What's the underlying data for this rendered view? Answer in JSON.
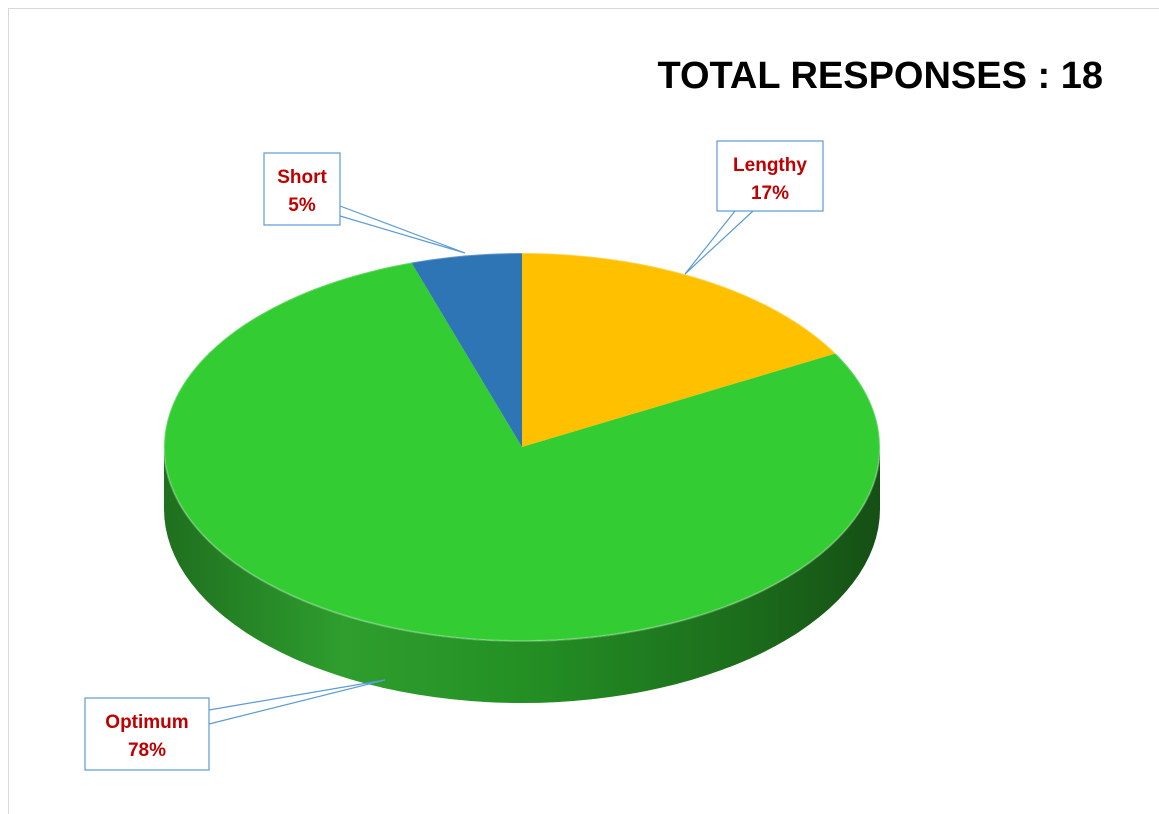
{
  "chart_data": {
    "type": "pie",
    "title": "TOTAL RESPONSES : 18",
    "three_d": true,
    "legend": "none",
    "slices": [
      {
        "label": "Lengthy",
        "value": 17,
        "display": "17%",
        "color": "#ffc000"
      },
      {
        "label": "Optimum",
        "value": 78,
        "display": "78%",
        "color": "#33cc33"
      },
      {
        "label": "Short",
        "value": 5,
        "display": "5%",
        "color": "#2e75b6"
      }
    ],
    "label_color": "#c00000",
    "callout_border_color": "#5b9bd5"
  }
}
